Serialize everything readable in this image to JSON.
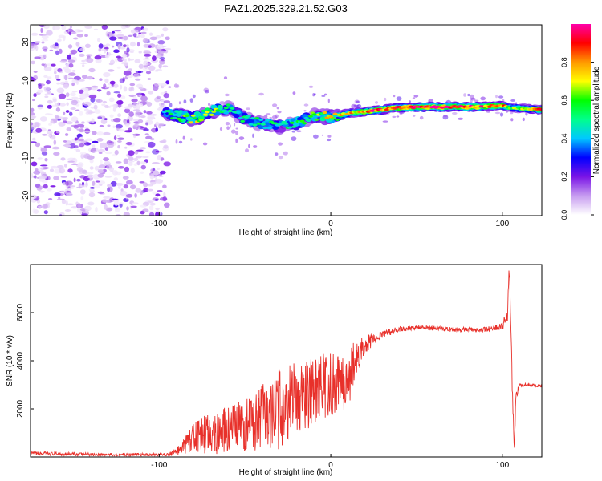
{
  "figure": {
    "title": "PAZ1.2025.329.21.52.G03"
  },
  "chart_data": [
    {
      "type": "heatmap",
      "title": "PAZ1.2025.329.21.52.G03",
      "xlabel": "Height of straight line (km)",
      "ylabel": "Frequency (Hz)",
      "xlim": [
        -175,
        123
      ],
      "ylim": [
        -25,
        24.5
      ],
      "xticks": [
        -100,
        0,
        100
      ],
      "yticks": [
        -20,
        -10,
        0,
        10,
        20
      ],
      "colorbar": {
        "label": "Normalized spectral amplitude",
        "range": [
          0,
          1
        ],
        "ticks": [
          "0.0",
          "0.2",
          "0.4",
          "0.6",
          "0.8"
        ],
        "colormap": [
          "#ffffff",
          "#c79cf0",
          "#7a14e6",
          "#0000ff",
          "#00c8ff",
          "#00ff8c",
          "#00ff00",
          "#ffff00",
          "#ff9900",
          "#ff0000",
          "#ff00aa"
        ]
      },
      "noise_region": {
        "x_range": [
          -175,
          -95
        ],
        "f_range": [
          -25,
          24.5
        ],
        "amplitude": 0.08
      },
      "signal_ridge": {
        "x": [
          -100,
          -90,
          -80,
          -70,
          -60,
          -50,
          -40,
          -30,
          -20,
          -10,
          0,
          10,
          20,
          40,
          60,
          80,
          100,
          105,
          123
        ],
        "f": [
          2,
          1,
          0,
          2,
          3,
          0,
          -1,
          -2,
          -1,
          1,
          0.5,
          1.5,
          2,
          3,
          3.2,
          3.2,
          3.5,
          3,
          2.5
        ],
        "amplitude": [
          0.5,
          0.6,
          0.75,
          0.7,
          0.55,
          0.5,
          0.55,
          0.5,
          0.55,
          0.6,
          0.8,
          0.75,
          0.9,
          0.95,
          1.0,
          0.95,
          0.9,
          0.6,
          0.85
        ]
      }
    },
    {
      "type": "line",
      "xlabel": "Height of straight line (km)",
      "ylabel": "SNR (10 * v/v)",
      "xlim": [
        -175,
        123
      ],
      "ylim": [
        0,
        8000
      ],
      "xticks": [
        -100,
        0,
        100
      ],
      "yticks": [
        2000,
        4000,
        6000
      ],
      "series": [
        {
          "name": "SNR",
          "color": "#e8302a",
          "x": [
            -175,
            -130,
            -95,
            -88,
            -80,
            -70,
            -60,
            -50,
            -40,
            -30,
            -20,
            -10,
            0,
            10,
            15,
            20,
            30,
            40,
            50,
            60,
            70,
            80,
            90,
            100,
            103,
            104,
            105,
            106,
            107,
            108,
            110,
            115,
            123
          ],
          "y": [
            150,
            100,
            100,
            300,
            800,
            1000,
            1100,
            1300,
            1600,
            2000,
            2500,
            2700,
            3000,
            3300,
            4000,
            4700,
            5100,
            5300,
            5400,
            5350,
            5300,
            5300,
            5300,
            5400,
            6000,
            7800,
            5600,
            2200,
            600,
            2500,
            3000,
            3000,
            2950
          ],
          "noise_amplitude": [
            80,
            60,
            60,
            200,
            600,
            900,
            1000,
            1100,
            1400,
            1700,
            1600,
            1500,
            1400,
            1300,
            900,
            400,
            150,
            120,
            100,
            100,
            100,
            100,
            100,
            150,
            400,
            200,
            400,
            600,
            300,
            200,
            80,
            60,
            60
          ]
        }
      ]
    }
  ]
}
